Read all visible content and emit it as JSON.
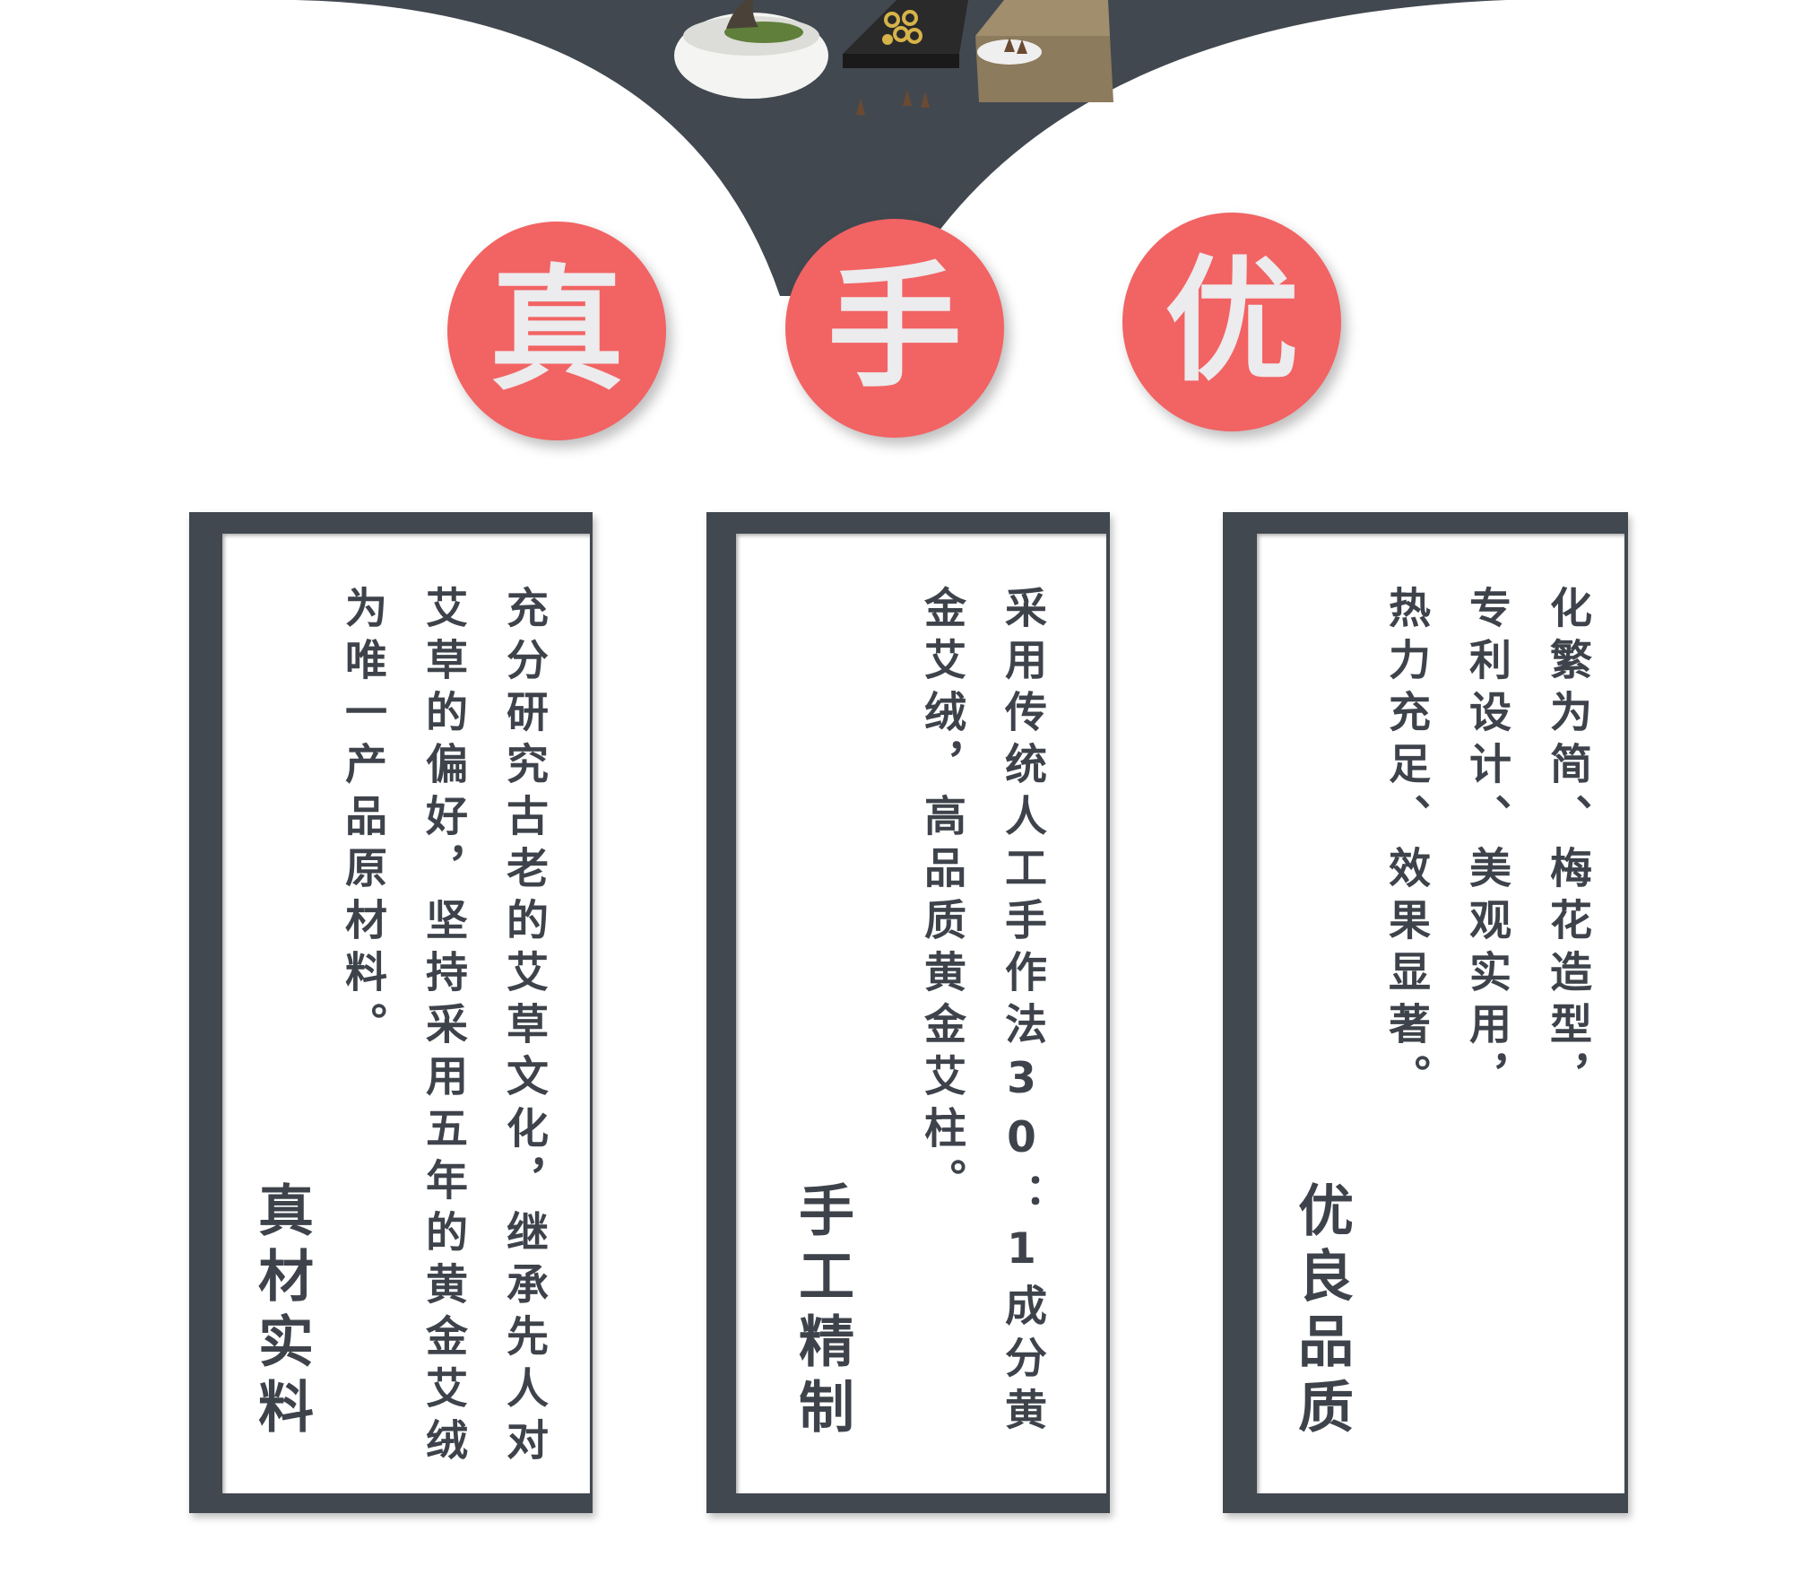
{
  "badges": [
    "真",
    "手",
    "优"
  ],
  "cards": [
    {
      "body": "充分研究古老的艾草文化，继承先人对艾草的偏好，坚持采用五年的黄金艾绒为唯一产品原材料。",
      "title": "真材实料"
    },
    {
      "body": "采用传统人工手作法30：1成分黄金艾绒，高品质黄金艾柱。",
      "title": "手工精制"
    },
    {
      "body": "化繁为简、梅花造型，专利设计、美观实用，热力充足、效果显著。",
      "title": "优良品质"
    }
  ],
  "colors": {
    "dark": "#424850",
    "accent": "#f26363",
    "text": "#3e434b",
    "badge_text": "#ecebee"
  }
}
